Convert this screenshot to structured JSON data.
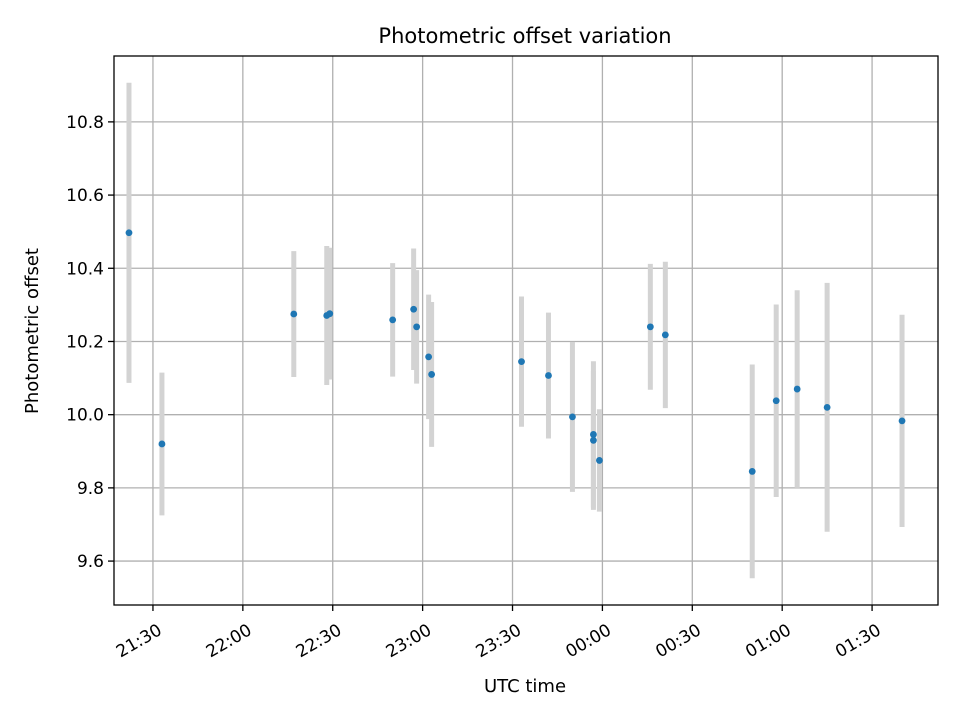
{
  "chart_data": {
    "type": "scatter",
    "title": "Photometric offset variation",
    "xlabel": "UTC time",
    "ylabel": "Photometric offset",
    "x_ticks": [
      {
        "t": "21:30",
        "label": "21:30"
      },
      {
        "t": "22:00",
        "label": "22:00"
      },
      {
        "t": "22:30",
        "label": "22:30"
      },
      {
        "t": "23:00",
        "label": "23:00"
      },
      {
        "t": "23:30",
        "label": "23:30"
      },
      {
        "t": "00:00",
        "label": "00:00"
      },
      {
        "t": "00:30",
        "label": "00:30"
      },
      {
        "t": "01:00",
        "label": "01:00"
      },
      {
        "t": "01:30",
        "label": "01:30"
      }
    ],
    "xlim": [
      "21:17",
      "01:52"
    ],
    "ylim": [
      9.48,
      10.98
    ],
    "y_ticks": [
      9.6,
      9.8,
      10.0,
      10.2,
      10.4,
      10.6,
      10.8
    ],
    "grid": true,
    "marker_color": "#1f77b4",
    "errorbar_color": "#d3d3d3",
    "points": [
      {
        "x": "21:22",
        "y": 10.497,
        "err": 0.41
      },
      {
        "x": "21:33",
        "y": 9.92,
        "err": 0.195
      },
      {
        "x": "22:17",
        "y": 10.275,
        "err": 0.172
      },
      {
        "x": "22:28",
        "y": 10.271,
        "err": 0.19
      },
      {
        "x": "22:29",
        "y": 10.276,
        "err": 0.18
      },
      {
        "x": "22:50",
        "y": 10.259,
        "err": 0.155
      },
      {
        "x": "22:57",
        "y": 10.288,
        "err": 0.166
      },
      {
        "x": "22:58",
        "y": 10.24,
        "err": 0.155
      },
      {
        "x": "23:02",
        "y": 10.158,
        "err": 0.17
      },
      {
        "x": "23:03",
        "y": 10.11,
        "err": 0.198
      },
      {
        "x": "23:33",
        "y": 10.145,
        "err": 0.178
      },
      {
        "x": "23:42",
        "y": 10.107,
        "err": 0.172
      },
      {
        "x": "23:50",
        "y": 9.994,
        "err": 0.205
      },
      {
        "x": "23:57",
        "y": 9.946,
        "err": 0.2
      },
      {
        "x": "23:57",
        "y": 9.93,
        "err": 0.19
      },
      {
        "x": "23:59",
        "y": 9.875,
        "err": 0.14
      },
      {
        "x": "00:16",
        "y": 10.24,
        "err": 0.172
      },
      {
        "x": "00:21",
        "y": 10.218,
        "err": 0.2
      },
      {
        "x": "00:50",
        "y": 9.845,
        "err": 0.292
      },
      {
        "x": "00:58",
        "y": 10.038,
        "err": 0.263
      },
      {
        "x": "01:05",
        "y": 10.07,
        "err": 0.27
      },
      {
        "x": "01:15",
        "y": 10.02,
        "err": 0.34
      },
      {
        "x": "01:40",
        "y": 9.983,
        "err": 0.29
      }
    ]
  }
}
